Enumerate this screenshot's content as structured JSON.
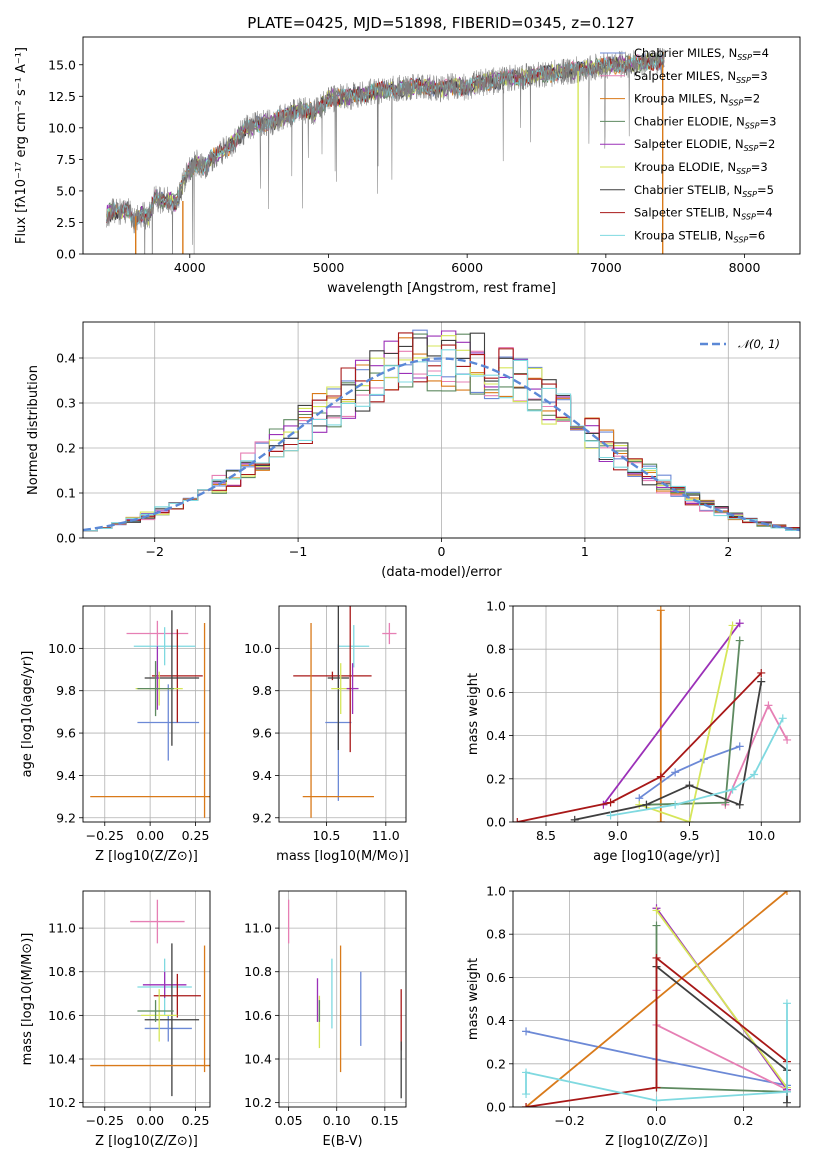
{
  "figure_title": "PLATE=0425, MJD=51898, FIBERID=0345, z=0.127",
  "colors": {
    "Chabrier MILES": "#6c89d6",
    "Salpeter MILES": "#e67fb4",
    "Kroupa MILES": "#d97a1a",
    "Chabrier ELODIE": "#5e8a60",
    "Salpeter ELODIE": "#9b30b8",
    "Kroupa ELODIE": "#d6e65a",
    "Chabrier STELIB": "#3f3f3f",
    "Salpeter STELIB": "#a81818",
    "Kroupa STELIB": "#7fd9e0",
    "data": "#808080",
    "normal": "#5b88d6"
  },
  "chart_data": [
    {
      "type": "line",
      "id": "spectrum",
      "xlabel": "wavelength [Angstrom, rest frame]",
      "ylabel": "Flux [fλ10⁻¹⁷ erg cm⁻² s⁻¹ A⁻¹]",
      "xlim": [
        3230,
        8400
      ],
      "ylim": [
        0,
        17.2
      ],
      "xticks": [
        4000,
        5000,
        6000,
        7000,
        8000
      ],
      "yticks": [
        "0.0",
        "2.5",
        "5.0",
        "7.5",
        "10.0",
        "12.5",
        "15.0"
      ],
      "data_x": [
        3400,
        3450,
        3500,
        3550,
        3600,
        3650,
        3700,
        3750,
        3800,
        3850,
        3900,
        3950,
        4000,
        4050,
        4100,
        4150,
        4200,
        4300,
        4400,
        4500,
        4600,
        4700,
        4800,
        4900,
        5000,
        5100,
        5200,
        5300,
        5400,
        5500,
        5600,
        5700,
        5800,
        5900,
        6000,
        6100,
        6200,
        6300,
        6400,
        6500,
        6600,
        6700,
        6800,
        6900,
        7000,
        7100,
        7200,
        7300,
        7420
      ],
      "data_y": [
        3.2,
        3.4,
        3.3,
        3.6,
        2.6,
        3.2,
        2.8,
        4.5,
        4.2,
        4.3,
        3.9,
        5.6,
        6.7,
        7.2,
        6.8,
        7.6,
        7.8,
        8.7,
        9.9,
        10.3,
        10.5,
        11.0,
        11.4,
        11.2,
        12.3,
        12.4,
        12.6,
        12.8,
        13.0,
        13.1,
        13.2,
        13.3,
        13.1,
        13.3,
        13.2,
        13.6,
        13.7,
        13.9,
        14.0,
        14.2,
        14.3,
        14.5,
        14.6,
        14.8,
        14.9,
        15.0,
        15.1,
        15.2,
        15.3
      ],
      "dips": [
        {
          "x": 3610,
          "y_from": 3.0,
          "y_to": 0.0,
          "series": "Kroupa MILES"
        },
        {
          "x": 3950,
          "y_from": 4.2,
          "y_to": 0.0,
          "series": "Kroupa MILES"
        },
        {
          "x": 6800,
          "y_from": 14.5,
          "y_to": 0.0,
          "series": "Kroupa ELODIE"
        },
        {
          "x": 7410,
          "y_from": 15.0,
          "y_to": 0.0,
          "series": "Kroupa MILES"
        }
      ],
      "legend": [
        "Chabrier MILES, NSSP=4",
        "Salpeter MILES, NSSP=3",
        "Kroupa MILES, NSSP=2",
        "Chabrier ELODIE, NSSP=3",
        "Salpeter ELODIE, NSSP=2",
        "Kroupa ELODIE, NSSP=3",
        "Chabrier STELIB, NSSP=5",
        "Salpeter STELIB, NSSP=4",
        "Kroupa STELIB, NSSP=6"
      ]
    },
    {
      "type": "line",
      "id": "residuals",
      "style": "step histogram",
      "xlabel": "(data-model)/error",
      "ylabel": "Normed distribution",
      "xlim": [
        -2.5,
        2.5
      ],
      "ylim": [
        0,
        0.48
      ],
      "xticks": [
        "−2",
        "−1",
        "0",
        "1",
        "2"
      ],
      "yticks": [
        "0.0",
        "0.1",
        "0.2",
        "0.3",
        "0.4"
      ],
      "legend": "𝒩(0, 1)",
      "bin_width": 0.1,
      "bin_start": -2.5
    },
    {
      "type": "scatter",
      "id": "age_vs_Z",
      "style": "error crosses",
      "xlabel": "Z [log10(Z/Z⊙)]",
      "ylabel": "age  [log10(age/yr)]",
      "xlim": [
        -0.37,
        0.33
      ],
      "ylim": [
        9.18,
        10.2
      ],
      "xticks": [
        "−0.25",
        "0.00",
        "0.25"
      ],
      "yticks": [
        "9.2",
        "9.4",
        "9.6",
        "9.8",
        "10.0"
      ],
      "points": [
        {
          "series": "Salpeter MILES",
          "x": 0.04,
          "y": 10.07,
          "xe": 0.17,
          "ye": 0.06
        },
        {
          "series": "Kroupa STELIB",
          "x": 0.08,
          "y": 10.01,
          "xe": 0.17,
          "ye": 0.09
        },
        {
          "series": "Chabrier MILES",
          "x": 0.1,
          "y": 9.65,
          "xe": 0.17,
          "ye": 0.18
        },
        {
          "series": "Salpeter STELIB",
          "x": 0.15,
          "y": 9.87,
          "xe": 0.14,
          "ye": 0.22
        },
        {
          "series": "Chabrier STELIB",
          "x": 0.12,
          "y": 9.86,
          "xe": 0.15,
          "ye": 0.32
        },
        {
          "series": "Kroupa ELODIE",
          "x": 0.05,
          "y": 9.81,
          "xe": 0.13,
          "ye": 0.08
        },
        {
          "series": "Salpeter ELODIE",
          "x": 0.04,
          "y": 9.86,
          "xe": 0.01,
          "ye": 0.15
        },
        {
          "series": "Chabrier ELODIE",
          "x": 0.03,
          "y": 9.81,
          "xe": 0.1,
          "ye": 0.13
        },
        {
          "series": "Kroupa MILES",
          "x": 0.0,
          "y": 9.3,
          "xe": 0.33,
          "ye": 0.0
        },
        {
          "series": "Kroupa MILES",
          "x": 0.3,
          "y": 9.66,
          "xe": 0.0,
          "ye": 0.46
        }
      ]
    },
    {
      "type": "scatter",
      "id": "age_vs_mass",
      "style": "error crosses",
      "xlabel": "mass [log10(M/M⊙)]",
      "ylabel": "",
      "xlim": [
        10.1,
        11.17
      ],
      "ylim": [
        9.18,
        10.2
      ],
      "xticks": [
        "10.5",
        "11.0"
      ],
      "yticks": [
        "9.2",
        "9.4",
        "9.6",
        "9.8",
        "10.0"
      ],
      "points": [
        {
          "series": "Salpeter MILES",
          "x": 11.03,
          "y": 10.07,
          "xe": 0.06,
          "ye": 0.05
        },
        {
          "series": "Kroupa STELIB",
          "x": 10.73,
          "y": 10.01,
          "xe": 0.13,
          "ye": 0.1
        },
        {
          "series": "Chabrier MILES",
          "x": 10.6,
          "y": 9.65,
          "xe": 0.11,
          "ye": 0.37
        },
        {
          "series": "Salpeter STELIB",
          "x": 10.55,
          "y": 9.87,
          "xe": 0.33,
          "ye": 0.02
        },
        {
          "series": "Chabrier STELIB",
          "x": 10.6,
          "y": 9.86,
          "xe": 0.09,
          "ye": 0.34
        },
        {
          "series": "Kroupa ELODIE",
          "x": 10.62,
          "y": 9.81,
          "xe": 0.08,
          "ye": 0.12
        },
        {
          "series": "Salpeter ELODIE",
          "x": 10.72,
          "y": 9.81,
          "xe": 0.05,
          "ye": 0.12
        },
        {
          "series": "Salpeter STELIB",
          "x": 10.7,
          "y": 9.87,
          "xe": 0.0,
          "ye": 0.36
        },
        {
          "series": "Kroupa MILES",
          "x": 10.6,
          "y": 9.3,
          "xe": 0.3,
          "ye": 0.0
        },
        {
          "series": "Kroupa MILES",
          "x": 10.37,
          "y": 9.66,
          "xe": 0.0,
          "ye": 0.46
        }
      ]
    },
    {
      "type": "line",
      "id": "massweight_vs_age",
      "xlabel": "age  [log10(age/yr)]",
      "ylabel": "mass weight",
      "xlim": [
        8.27,
        10.27
      ],
      "ylim": [
        0,
        1.0
      ],
      "xticks": [
        "8.5",
        "9.0",
        "9.5",
        "10.0"
      ],
      "yticks": [
        "0.0",
        "0.2",
        "0.4",
        "0.6",
        "0.8",
        "1.0"
      ],
      "series": [
        {
          "name": "Chabrier MILES",
          "x": [
            9.15,
            9.4,
            9.6,
            9.85
          ],
          "y": [
            0.11,
            0.23,
            0.29,
            0.35
          ]
        },
        {
          "name": "Salpeter MILES",
          "x": [
            9.75,
            10.05,
            10.18
          ],
          "y": [
            0.08,
            0.54,
            0.38
          ]
        },
        {
          "name": "Kroupa MILES",
          "x": [
            9.3,
            9.3
          ],
          "y": [
            0.0,
            0.98
          ]
        },
        {
          "name": "Chabrier ELODIE",
          "x": [
            9.2,
            9.75,
            9.85
          ],
          "y": [
            0.08,
            0.09,
            0.84
          ]
        },
        {
          "name": "Salpeter ELODIE",
          "x": [
            8.9,
            9.85
          ],
          "y": [
            0.08,
            0.92
          ]
        },
        {
          "name": "Kroupa ELODIE",
          "x": [
            9.15,
            9.5,
            9.8
          ],
          "y": [
            0.08,
            0.0,
            0.91
          ]
        },
        {
          "name": "Chabrier STELIB",
          "x": [
            8.7,
            9.2,
            9.5,
            9.85,
            10.0
          ],
          "y": [
            0.01,
            0.08,
            0.17,
            0.08,
            0.65
          ]
        },
        {
          "name": "Salpeter STELIB",
          "x": [
            8.3,
            8.95,
            9.3,
            10.0
          ],
          "y": [
            0.0,
            0.09,
            0.21,
            0.69
          ]
        },
        {
          "name": "Kroupa STELIB",
          "x": [
            8.95,
            9.4,
            9.8,
            9.95,
            10.15
          ],
          "y": [
            0.03,
            0.08,
            0.15,
            0.22,
            0.48
          ]
        }
      ]
    },
    {
      "type": "scatter",
      "id": "mass_vs_Z",
      "style": "error crosses",
      "xlabel": "Z [log10(Z/Z⊙)]",
      "ylabel": "mass [log10(M/M⊙)]",
      "xlim": [
        -0.37,
        0.33
      ],
      "ylim": [
        10.18,
        11.17
      ],
      "xticks": [
        "−0.25",
        "0.00",
        "0.25"
      ],
      "yticks": [
        "10.2",
        "10.4",
        "10.6",
        "10.8",
        "11.0"
      ],
      "points": [
        {
          "series": "Salpeter MILES",
          "x": 0.04,
          "y": 11.03,
          "xe": 0.15,
          "ye": 0.1
        },
        {
          "series": "Kroupa STELIB",
          "x": 0.08,
          "y": 10.73,
          "xe": 0.15,
          "ye": 0.13
        },
        {
          "series": "Chabrier MILES",
          "x": 0.1,
          "y": 10.54,
          "xe": 0.13,
          "ye": 0.06
        },
        {
          "series": "Salpeter ELODIE",
          "x": 0.08,
          "y": 10.74,
          "xe": 0.12,
          "ye": 0.06
        },
        {
          "series": "Salpeter STELIB",
          "x": 0.15,
          "y": 10.69,
          "xe": 0.13,
          "ye": 0.1
        },
        {
          "series": "Chabrier STELIB",
          "x": 0.12,
          "y": 10.58,
          "xe": 0.15,
          "ye": 0.35
        },
        {
          "series": "Kroupa ELODIE",
          "x": 0.05,
          "y": 10.6,
          "xe": 0.1,
          "ye": 0.12
        },
        {
          "series": "Chabrier ELODIE",
          "x": 0.03,
          "y": 10.62,
          "xe": 0.1,
          "ye": 0.05
        },
        {
          "series": "Kroupa MILES",
          "x": 0.0,
          "y": 10.37,
          "xe": 0.33,
          "ye": 0.0
        },
        {
          "series": "Kroupa MILES",
          "x": 0.3,
          "y": 10.63,
          "xe": 0.0,
          "ye": 0.29
        }
      ]
    },
    {
      "type": "scatter",
      "id": "mass_vs_ebv",
      "style": "vertical error bars",
      "xlabel": "E(B-V)",
      "ylabel": "",
      "xlim": [
        0.04,
        0.172
      ],
      "ylim": [
        10.18,
        11.17
      ],
      "xticks": [
        "0.05",
        "0.10",
        "0.15"
      ],
      "yticks": [
        "10.2",
        "10.4",
        "10.6",
        "10.8",
        "11.0"
      ],
      "points": [
        {
          "series": "Salpeter MILES",
          "x": 0.05,
          "y": 11.03,
          "ye": 0.1
        },
        {
          "series": "Salpeter ELODIE",
          "x": 0.08,
          "y": 10.67,
          "ye": 0.1
        },
        {
          "series": "Kroupa ELODIE",
          "x": 0.082,
          "y": 10.57,
          "ye": 0.12
        },
        {
          "series": "Chabrier ELODIE",
          "x": 0.082,
          "y": 10.62,
          "ye": 0.05
        },
        {
          "series": "Kroupa STELIB",
          "x": 0.095,
          "y": 10.7,
          "ye": 0.16
        },
        {
          "series": "Kroupa MILES",
          "x": 0.104,
          "y": 10.63,
          "ye": 0.29
        },
        {
          "series": "Chabrier MILES",
          "x": 0.125,
          "y": 10.63,
          "ye": 0.17
        },
        {
          "series": "Salpeter STELIB",
          "x": 0.167,
          "y": 10.58,
          "ye": 0.14
        },
        {
          "series": "Chabrier STELIB",
          "x": 0.167,
          "y": 10.35,
          "ye": 0.13
        }
      ]
    },
    {
      "type": "line",
      "id": "massweight_vs_Z",
      "xlabel": "Z [log10(Z/Z⊙)]",
      "ylabel": "mass weight",
      "xlim": [
        -0.33,
        0.33
      ],
      "ylim": [
        0,
        1.0
      ],
      "xticks": [
        "−0.2",
        "0.0",
        "0.2"
      ],
      "yticks": [
        "0.0",
        "0.2",
        "0.4",
        "0.6",
        "0.8",
        "1.0"
      ],
      "series": [
        {
          "name": "Chabrier MILES",
          "x": [
            -0.3,
            0.0,
            0.3
          ],
          "y": [
            0.35,
            0.22,
            0.1
          ]
        },
        {
          "name": "Salpeter MILES",
          "x": [
            0.0,
            0.0,
            0.3
          ],
          "y": [
            0.54,
            0.38,
            0.08
          ]
        },
        {
          "name": "Kroupa MILES",
          "x": [
            -0.3,
            0.3
          ],
          "y": [
            0.0,
            1.0
          ]
        },
        {
          "name": "Chabrier ELODIE",
          "x": [
            0.0,
            0.0,
            0.3
          ],
          "y": [
            0.84,
            0.09,
            0.07
          ]
        },
        {
          "name": "Salpeter ELODIE",
          "x": [
            0.0,
            0.3
          ],
          "y": [
            0.92,
            0.08
          ]
        },
        {
          "name": "Kroupa ELODIE",
          "x": [
            0.0,
            0.3
          ],
          "y": [
            0.91,
            0.09
          ]
        },
        {
          "name": "Chabrier STELIB",
          "x": [
            0.0,
            0.3,
            0.3
          ],
          "y": [
            0.65,
            0.17,
            0.02
          ]
        },
        {
          "name": "Salpeter STELIB",
          "x": [
            -0.3,
            0.0,
            0.0,
            0.3
          ],
          "y": [
            0.0,
            0.09,
            0.69,
            0.21
          ]
        },
        {
          "name": "Kroupa STELIB",
          "x": [
            -0.3,
            -0.3,
            0.0,
            0.3,
            0.3
          ],
          "y": [
            0.06,
            0.16,
            0.03,
            0.07,
            0.48
          ]
        }
      ]
    }
  ]
}
